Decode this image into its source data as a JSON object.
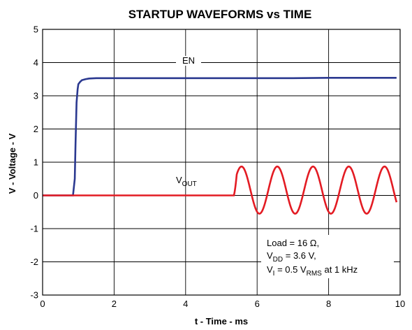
{
  "chart_data": {
    "type": "line",
    "title": "STARTUP WAVEFORMS vs TIME",
    "xlabel": "t - Time - ms",
    "ylabel": "V - Voltage - V",
    "xlim": [
      0,
      10
    ],
    "ylim": [
      -3,
      5
    ],
    "x_ticks": [
      "0",
      "2",
      "4",
      "6",
      "8",
      "10"
    ],
    "y_ticks": [
      "5",
      "4",
      "3",
      "2",
      "1",
      "0",
      "-1",
      "-2",
      "-3"
    ],
    "grid": true,
    "series": [
      {
        "name": "EN",
        "color": "#2b3990",
        "x": [
          0,
          0.85,
          0.9,
          0.92,
          0.95,
          0.98,
          1.0,
          1.05,
          1.1,
          1.2,
          1.3,
          1.5,
          2,
          3,
          4,
          5,
          6,
          7,
          8,
          9,
          9.9
        ],
        "y": [
          0,
          0,
          0.5,
          1.5,
          2.8,
          3.2,
          3.35,
          3.42,
          3.47,
          3.5,
          3.52,
          3.53,
          3.53,
          3.53,
          3.53,
          3.53,
          3.53,
          3.53,
          3.54,
          3.54,
          3.54
        ]
      },
      {
        "name": "VOUT",
        "color": "#e31b23",
        "waveform": {
          "flat_until_ms": 5.35,
          "frequency_khz": 1,
          "peak_v": 0.87,
          "trough_v": -0.55,
          "end_ms": 9.9
        }
      }
    ],
    "annotations": {
      "en_label": "EN",
      "vout_label": {
        "main": "V",
        "sub": "OUT"
      },
      "note_line1": "Load = 16 Ω,",
      "note_line2": {
        "main": "V",
        "sub": "DD",
        "rest": " = 3.6 V,"
      },
      "note_line3": {
        "main": "V",
        "sub": "I",
        "mid": " = 0.5 V",
        "sub2": "RMS",
        "rest": " at 1 kHz"
      }
    }
  }
}
